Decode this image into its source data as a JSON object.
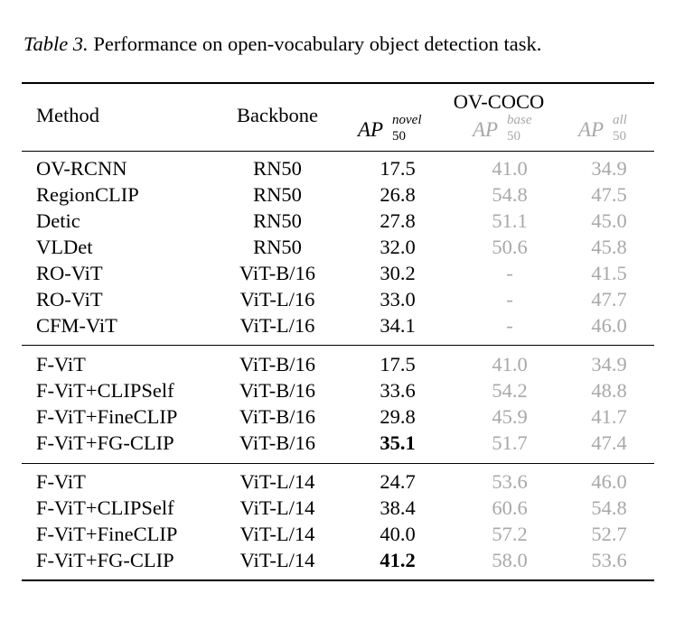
{
  "caption": {
    "label": "Table 3.",
    "text": "Performance on open-vocabulary object detection task."
  },
  "header": {
    "method": "Method",
    "backbone": "Backbone",
    "group": "OV-COCO",
    "ap_novel": {
      "base": "AP",
      "sup": "novel",
      "sub": "50"
    },
    "ap_base": {
      "base": "AP",
      "sup": "base",
      "sub": "50"
    },
    "ap_all": {
      "base": "AP",
      "sup": "all",
      "sub": "50"
    }
  },
  "rows": [
    {
      "method": "OV-RCNN",
      "backbone": "RN50",
      "novel": "17.5",
      "base": "41.0",
      "all": "34.9"
    },
    {
      "method": "RegionCLIP",
      "backbone": "RN50",
      "novel": "26.8",
      "base": "54.8",
      "all": "47.5"
    },
    {
      "method": "Detic",
      "backbone": "RN50",
      "novel": "27.8",
      "base": "51.1",
      "all": "45.0"
    },
    {
      "method": "VLDet",
      "backbone": "RN50",
      "novel": "32.0",
      "base": "50.6",
      "all": "45.8"
    },
    {
      "method": "RO-ViT",
      "backbone": "ViT-B/16",
      "novel": "30.2",
      "base": "-",
      "all": "41.5"
    },
    {
      "method": "RO-ViT",
      "backbone": "ViT-L/16",
      "novel": "33.0",
      "base": "-",
      "all": "47.7"
    },
    {
      "method": "CFM-ViT",
      "backbone": "ViT-L/16",
      "novel": "34.1",
      "base": "-",
      "all": "46.0"
    },
    {
      "method": "F-ViT",
      "backbone": "ViT-B/16",
      "novel": "17.5",
      "base": "41.0",
      "all": "34.9"
    },
    {
      "method": "F-ViT+CLIPSelf",
      "backbone": "ViT-B/16",
      "novel": "33.6",
      "base": "54.2",
      "all": "48.8"
    },
    {
      "method": "F-ViT+FineCLIP",
      "backbone": "ViT-B/16",
      "novel": "29.8",
      "base": "45.9",
      "all": "41.7"
    },
    {
      "method": "F-ViT+FG-CLIP",
      "backbone": "ViT-B/16",
      "novel": "35.1",
      "base": "51.7",
      "all": "47.4"
    },
    {
      "method": "F-ViT",
      "backbone": "ViT-L/14",
      "novel": "24.7",
      "base": "53.6",
      "all": "46.0"
    },
    {
      "method": "F-ViT+CLIPSelf",
      "backbone": "ViT-L/14",
      "novel": "38.4",
      "base": "60.6",
      "all": "54.8"
    },
    {
      "method": "F-ViT+FineCLIP",
      "backbone": "ViT-L/14",
      "novel": "40.0",
      "base": "57.2",
      "all": "52.7"
    },
    {
      "method": "F-ViT+FG-CLIP",
      "backbone": "ViT-L/14",
      "novel": "41.2",
      "base": "58.0",
      "all": "53.6"
    }
  ]
}
